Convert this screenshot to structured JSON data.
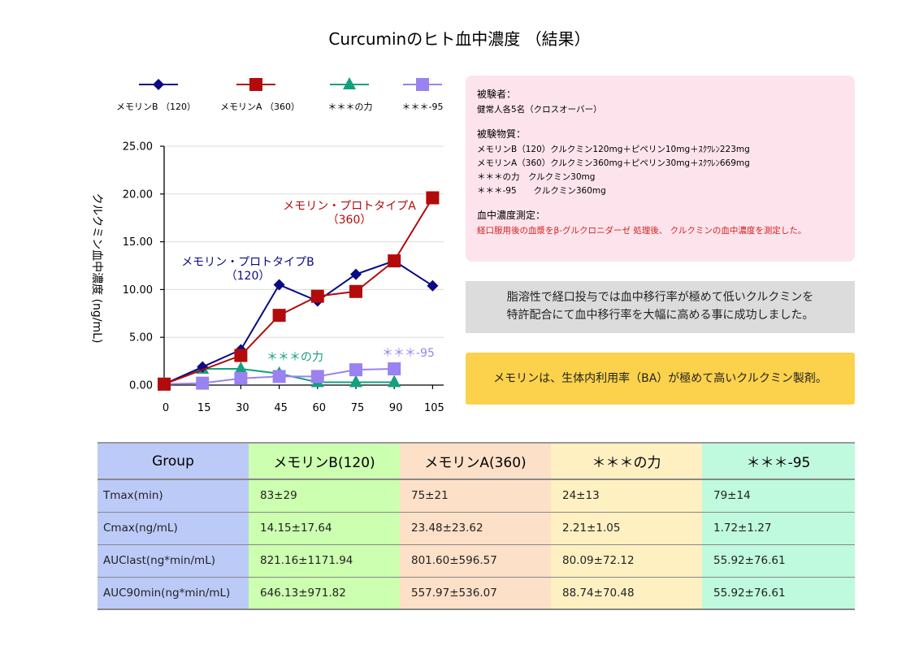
{
  "title": "Curcuminのヒト血中濃度 （結果）",
  "chart_data": {
    "type": "line",
    "ylabel": "クルクミン血中濃度 (ng/mL)",
    "xlabel": "",
    "x": [
      0,
      15,
      30,
      45,
      60,
      75,
      90,
      105
    ],
    "x_tick_labels": [
      "0",
      "15",
      "30",
      "45",
      "60",
      "75",
      "90",
      "105"
    ],
    "ylim": [
      0,
      25
    ],
    "y_ticks": [
      0,
      5,
      10,
      15,
      20,
      25
    ],
    "y_tick_labels": [
      "0.00",
      "5.00",
      "10.00",
      "15.00",
      "20.00",
      "25.00"
    ],
    "grid": "horizontal",
    "legend_position": "top",
    "series": [
      {
        "name": "メモリンB （120）",
        "marker": "diamond",
        "color": "#0a0a85",
        "values": [
          0.1,
          1.9,
          3.7,
          10.5,
          8.8,
          11.6,
          13.0,
          10.4
        ]
      },
      {
        "name": "メモリンA （360）",
        "marker": "square",
        "color": "#b30b0b",
        "values": [
          0.1,
          null,
          3.1,
          7.3,
          9.3,
          9.8,
          13.0,
          19.6
        ]
      },
      {
        "name": "＊＊＊の力",
        "marker": "triangle",
        "color": "#12a07f",
        "values": [
          0.1,
          1.7,
          1.7,
          1.2,
          0.3,
          0.3,
          0.3,
          null
        ]
      },
      {
        "name": "＊＊＊-95",
        "marker": "square",
        "color": "#9a82f0",
        "values": [
          0.1,
          0.2,
          0.7,
          0.9,
          0.9,
          1.6,
          1.7,
          null
        ]
      }
    ],
    "annotations": [
      {
        "series": 0,
        "lines": [
          "メモリン・プロトタイプB",
          "（120）"
        ]
      },
      {
        "series": 1,
        "lines": [
          "メモリン・プロトタイプA",
          "（360）"
        ]
      },
      {
        "series": 2,
        "lines": [
          "＊＊＊の力"
        ]
      },
      {
        "series": 3,
        "lines": [
          "＊＊＊-95"
        ]
      }
    ]
  },
  "info": {
    "subjects_heading": "被験者：",
    "subjects_text": "健常人各5名（クロスオーバー）",
    "substances_heading": "被験物質：",
    "substances": [
      "メモリンB（120）クルクミン120mg＋ピペリン10mg＋ｽｸﾜﾚﾝ223mg",
      "メモリンA（360）クルクミン360mg＋ピペリン30mg＋ｽｸﾜﾚﾝ669mg",
      "＊＊＊の力　クルクミン30mg",
      "＊＊＊-95　　クルクミン360mg"
    ],
    "measurement_heading": "血中濃度測定：",
    "measurement_text": "経口服用後の血漿をβ-グルクロニダーゼ 処理後、 クルクミンの血中濃度を測定した。"
  },
  "note_gray": [
    "脂溶性で経口投与では血中移行率が極めて低いクルクミンを",
    "特許配合にて血中移行率を大幅に高める事に成功しました。"
  ],
  "note_yellow": "メモリンは、生体内利用率（BA）が極めて高いクルクミン製剤。",
  "table": {
    "headers": [
      "Group",
      "メモリンB(120)",
      "メモリンA(360)",
      "＊＊＊の力",
      "＊＊＊-95"
    ],
    "rows": [
      [
        "Tmax(min)",
        "83±29",
        "75±21",
        "24±13",
        "79±14"
      ],
      [
        "Cmax(ng/mL)",
        "14.15±17.64",
        "23.48±23.62",
        "2.21±1.05",
        "1.72±1.27"
      ],
      [
        "AUClast(ng*min/mL)",
        "821.16±1171.94",
        "801.60±596.57",
        "80.09±72.12",
        "55.92±76.61"
      ],
      [
        "AUC90min(ng*min/mL)",
        "646.13±971.82",
        "557.97±536.07",
        "88.74±70.48",
        "55.92±76.61"
      ]
    ]
  }
}
